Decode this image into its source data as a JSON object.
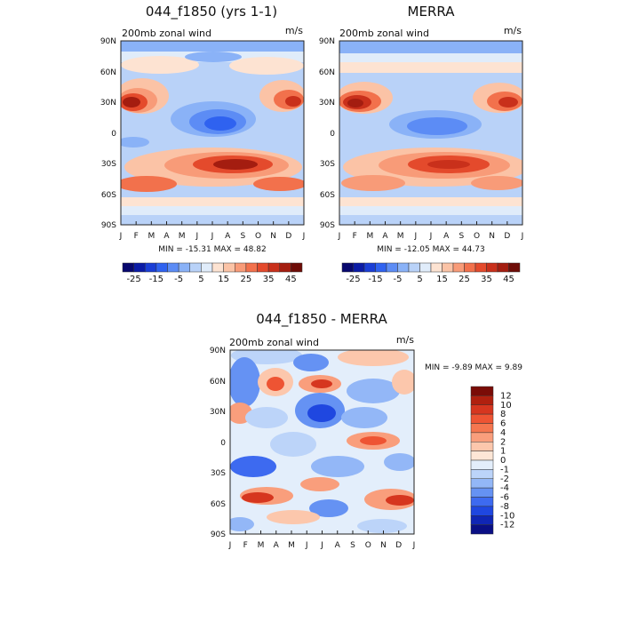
{
  "panels": [
    {
      "id": "model",
      "title": "044_f1850 (yrs 1-1)",
      "subtitle": "200mb zonal wind",
      "units": "m/s",
      "minmax": "MIN = -15.31 MAX =   48.82"
    },
    {
      "id": "obs",
      "title": "MERRA",
      "subtitle": "200mb zonal wind",
      "units": "m/s",
      "minmax": "MIN = -12.05 MAX =   44.73"
    },
    {
      "id": "diff",
      "title": "044_f1850 - MERRA",
      "subtitle": "200mb zonal wind",
      "units": "m/s",
      "minmax": "MIN =   -9.89 MAX =    9.89"
    }
  ],
  "chart_data": [
    {
      "type": "heatmap",
      "title": "044_f1850 (yrs 1-1)",
      "subtitle": "200mb zonal wind",
      "units": "m/s",
      "x_ticks": [
        "J",
        "F",
        "M",
        "A",
        "M",
        "J",
        "J",
        "A",
        "S",
        "O",
        "N",
        "D",
        "J"
      ],
      "y_ticks": [
        "90S",
        "60S",
        "30S",
        "0",
        "30N",
        "60N",
        "90N"
      ],
      "ylim": [
        -90,
        90
      ],
      "colorbar_ticks": [
        "-25",
        "-15",
        "-5",
        "5",
        "15",
        "25",
        "35",
        "45"
      ],
      "contour_levels": [
        -30,
        -25,
        -20,
        -15,
        -10,
        -5,
        0,
        5,
        10,
        15,
        20,
        25,
        30,
        35,
        40,
        45
      ],
      "colors": [
        "#08086e",
        "#0b1ba6",
        "#1a3ed6",
        "#2f62f0",
        "#5c8cf5",
        "#8ab2f7",
        "#b9d2f8",
        "#e0ecfa",
        "#fde3d2",
        "#fbc3a6",
        "#f89b78",
        "#f2714c",
        "#e44a2c",
        "#c9301b",
        "#a41d10",
        "#6e0c07"
      ],
      "min": -15.31,
      "max": 48.82
    },
    {
      "type": "heatmap",
      "title": "MERRA",
      "subtitle": "200mb zonal wind",
      "units": "m/s",
      "x_ticks": [
        "J",
        "F",
        "M",
        "A",
        "M",
        "J",
        "J",
        "A",
        "S",
        "O",
        "N",
        "D",
        "J"
      ],
      "y_ticks": [
        "90S",
        "60S",
        "30S",
        "0",
        "30N",
        "60N",
        "90N"
      ],
      "ylim": [
        -90,
        90
      ],
      "colorbar_ticks": [
        "-25",
        "-15",
        "-5",
        "5",
        "15",
        "25",
        "35",
        "45"
      ],
      "contour_levels": [
        -30,
        -25,
        -20,
        -15,
        -10,
        -5,
        0,
        5,
        10,
        15,
        20,
        25,
        30,
        35,
        40,
        45
      ],
      "colors": [
        "#08086e",
        "#0b1ba6",
        "#1a3ed6",
        "#2f62f0",
        "#5c8cf5",
        "#8ab2f7",
        "#b9d2f8",
        "#e0ecfa",
        "#fde3d2",
        "#fbc3a6",
        "#f89b78",
        "#f2714c",
        "#e44a2c",
        "#c9301b",
        "#a41d10",
        "#6e0c07"
      ],
      "min": -12.05,
      "max": 44.73
    },
    {
      "type": "heatmap",
      "title": "044_f1850 - MERRA",
      "subtitle": "200mb zonal wind",
      "units": "m/s",
      "x_ticks": [
        "J",
        "F",
        "M",
        "A",
        "M",
        "J",
        "J",
        "A",
        "S",
        "O",
        "N",
        "D",
        "J"
      ],
      "y_ticks": [
        "90S",
        "60S",
        "30S",
        "0",
        "30N",
        "60N",
        "90N"
      ],
      "ylim": [
        -90,
        90
      ],
      "colorbar_ticks": [
        "12",
        "10",
        "8",
        "6",
        "4",
        "2",
        "1",
        "0",
        "-1",
        "-2",
        "-4",
        "-6",
        "-8",
        "-10",
        "-12"
      ],
      "contour_levels": [
        12,
        10,
        8,
        6,
        4,
        2,
        1,
        0,
        -1,
        -2,
        -4,
        -6,
        -8,
        -10,
        -12
      ],
      "colors": [
        "#7a0c07",
        "#b0200f",
        "#d6361f",
        "#ee5433",
        "#f5764f",
        "#f99e7c",
        "#fcc7ac",
        "#fde6d6",
        "#e3eefb",
        "#bcd4f9",
        "#93b7f7",
        "#6592f3",
        "#3d6af0",
        "#1f47e0",
        "#1026b5",
        "#0a0f85"
      ],
      "min": -9.89,
      "max": 9.89
    }
  ]
}
